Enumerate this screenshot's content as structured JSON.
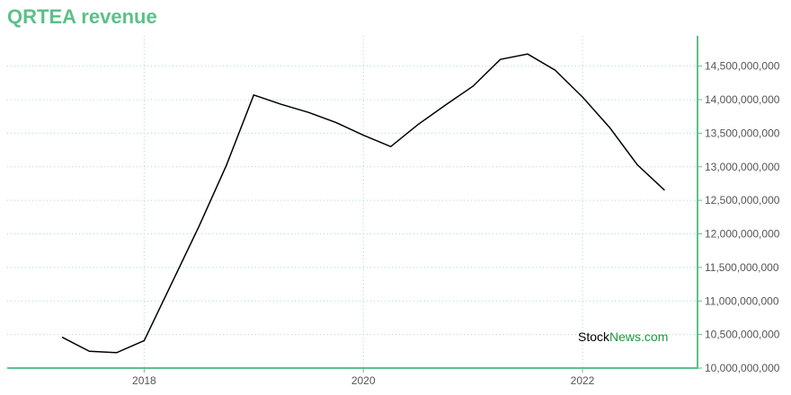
{
  "header": {
    "title": "QRTEA revenue"
  },
  "colors": {
    "title": "#5cc08a",
    "axis": "#5cc08a",
    "grid": "#a8d8c8",
    "line": "#000000",
    "watermark_brand": "#1a9a3a"
  },
  "watermark": {
    "part1": "Stock",
    "part2": "News",
    "part3": ".com"
  },
  "chart_data": {
    "type": "line",
    "title": "QRTEA revenue",
    "xlabel": "",
    "ylabel": "",
    "x_ticks": [
      {
        "value": 2018,
        "label": "2018"
      },
      {
        "value": 2020,
        "label": "2020"
      },
      {
        "value": 2022,
        "label": "2022"
      }
    ],
    "y_ticks": [
      {
        "value": 10000000000,
        "label": "10,000,000,000"
      },
      {
        "value": 10500000000,
        "label": "10,500,000,000"
      },
      {
        "value": 11000000000,
        "label": "11,000,000,000"
      },
      {
        "value": 11500000000,
        "label": "11,500,000,000"
      },
      {
        "value": 12000000000,
        "label": "12,000,000,000"
      },
      {
        "value": 12500000000,
        "label": "12,500,000,000"
      },
      {
        "value": 13000000000,
        "label": "13,000,000,000"
      },
      {
        "value": 13500000000,
        "label": "13,500,000,000"
      },
      {
        "value": 14000000000,
        "label": "14,000,000,000"
      },
      {
        "value": 14500000000,
        "label": "14,500,000,000"
      }
    ],
    "xlim": [
      2016.75,
      2023.05
    ],
    "ylim": [
      10000000000,
      14950000000
    ],
    "grid": true,
    "legend": "none",
    "series": [
      {
        "x": [
          2017.25,
          2017.5,
          2017.75,
          2018.0,
          2018.25,
          2018.5,
          2018.75,
          2019.0,
          2019.25,
          2019.5,
          2019.75,
          2020.0,
          2020.25,
          2020.5,
          2020.75,
          2021.0,
          2021.25,
          2021.5,
          2021.75,
          2022.0,
          2022.25,
          2022.5,
          2022.75
        ],
        "values": [
          10460000000,
          10250000000,
          10230000000,
          10410000000,
          11260000000,
          12110000000,
          13020000000,
          14070000000,
          13930000000,
          13810000000,
          13660000000,
          13470000000,
          13300000000,
          13630000000,
          13920000000,
          14200000000,
          14600000000,
          14680000000,
          14440000000,
          14040000000,
          13580000000,
          13030000000,
          12650000000
        ]
      }
    ]
  }
}
